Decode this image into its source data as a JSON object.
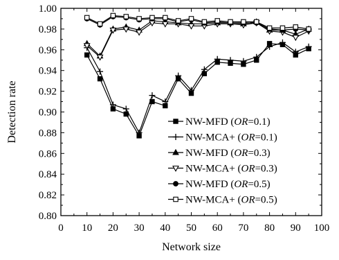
{
  "chart_data": {
    "type": "line",
    "title": "",
    "xlabel": "Network size",
    "ylabel": "Detection rate",
    "xlim": [
      0,
      100
    ],
    "ylim": [
      0.8,
      1.0
    ],
    "xticks": [
      "0",
      "10",
      "20",
      "30",
      "40",
      "50",
      "60",
      "70",
      "80",
      "90",
      "100"
    ],
    "yticks": [
      "0.80",
      "0.82",
      "0.84",
      "0.86",
      "0.88",
      "0.90",
      "0.92",
      "0.94",
      "0.96",
      "0.98",
      "1.00"
    ],
    "grid": false,
    "legend_position": "bottom-right",
    "x": [
      10,
      15,
      20,
      25,
      30,
      35,
      40,
      45,
      50,
      55,
      60,
      65,
      70,
      75,
      80,
      85,
      90,
      95
    ],
    "series": [
      {
        "name": "NW-MFD (OR=0.1)",
        "legend_base": "NW-MFD ",
        "legend_param": "OR",
        "legend_value": "=0.1",
        "marker": "filled-square",
        "values": [
          0.955,
          0.932,
          0.903,
          0.898,
          0.877,
          0.91,
          0.906,
          0.932,
          0.918,
          0.937,
          0.948,
          0.947,
          0.946,
          0.95,
          0.966,
          0.965,
          0.955,
          0.961
        ]
      },
      {
        "name": "NW-MCA+ (OR=0.1)",
        "legend_base": "NW-MCA+ ",
        "legend_param": "OR",
        "legend_value": "=0.1",
        "marker": "plus",
        "values": [
          0.962,
          0.939,
          0.907,
          0.903,
          0.88,
          0.916,
          0.91,
          0.935,
          0.921,
          0.941,
          0.951,
          0.95,
          0.949,
          0.953,
          0.963,
          0.967,
          0.958,
          0.963
        ]
      },
      {
        "name": "NW-MFD (OR=0.3)",
        "legend_base": "NW-MFD ",
        "legend_param": "OR",
        "legend_value": "=0.3",
        "marker": "filled-triangle",
        "values": [
          0.966,
          0.954,
          0.98,
          0.982,
          0.979,
          0.988,
          0.987,
          0.986,
          0.985,
          0.985,
          0.986,
          0.986,
          0.985,
          0.987,
          0.979,
          0.979,
          0.975,
          0.98
        ]
      },
      {
        "name": "NW-MCA+ (OR=0.3)",
        "legend_base": "NW-MCA+ ",
        "legend_param": "OR",
        "legend_value": "=0.3",
        "marker": "open-triangle-down",
        "values": [
          0.964,
          0.953,
          0.979,
          0.98,
          0.977,
          0.986,
          0.985,
          0.985,
          0.983,
          0.983,
          0.985,
          0.985,
          0.984,
          0.986,
          0.978,
          0.977,
          0.972,
          0.978
        ]
      },
      {
        "name": "NW-MFD (OR=0.5)",
        "legend_base": "NW-MFD ",
        "legend_param": "OR",
        "legend_value": "=0.5",
        "marker": "filled-circle",
        "values": [
          0.99,
          0.984,
          0.992,
          0.991,
          0.989,
          0.99,
          0.99,
          0.987,
          0.989,
          0.986,
          0.987,
          0.986,
          0.986,
          0.986,
          0.98,
          0.979,
          0.98,
          0.979
        ]
      },
      {
        "name": "NW-MCA+ (OR=0.5)",
        "legend_base": "NW-MCA+ ",
        "legend_param": "OR",
        "legend_value": "=0.5",
        "marker": "open-square",
        "values": [
          0.991,
          0.985,
          0.993,
          0.992,
          0.99,
          0.991,
          0.991,
          0.988,
          0.99,
          0.987,
          0.988,
          0.987,
          0.987,
          0.987,
          0.981,
          0.981,
          0.982,
          0.98
        ]
      }
    ]
  }
}
